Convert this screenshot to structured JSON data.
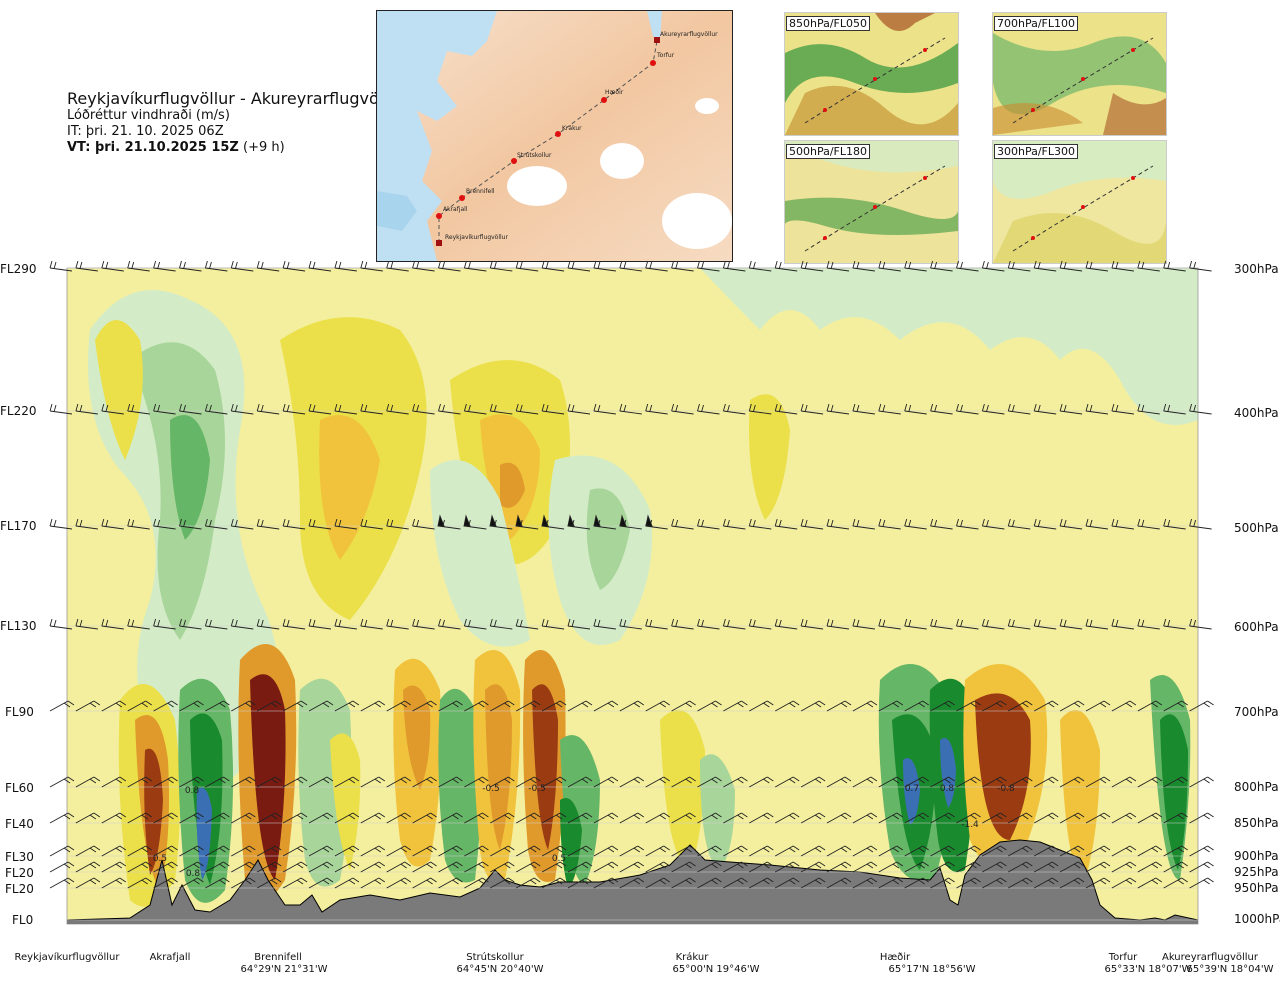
{
  "header": {
    "route": "Reykjavíkurflugvöllur - Akureyrarflugvöllur",
    "variable": "Lóðréttur vindhraði (m/s)",
    "issue_time": "IT: þri. 21. 10. 2025 06Z",
    "valid_time_bold": "VT: þri. 21.10.2025 15Z",
    "valid_offset": " (+9 h)"
  },
  "map": {
    "points": [
      {
        "name": "Akureyrarflugvöllur"
      },
      {
        "name": "Torfur"
      },
      {
        "name": "Hæðir"
      },
      {
        "name": "Krákur"
      },
      {
        "name": "Strútskollur"
      },
      {
        "name": "Brennifell"
      },
      {
        "name": "Akrafjall"
      },
      {
        "name": "Reykjavíkurflugvöllur"
      }
    ]
  },
  "panels": [
    {
      "label": "850hPa/FL050"
    },
    {
      "label": "700hPa/FL100"
    },
    {
      "label": "500hPa/FL180"
    },
    {
      "label": "300hPa/FL300"
    }
  ],
  "chart_data": {
    "type": "heatmap",
    "title": "Lóðréttur vindhraði (m/s)",
    "y_left_labels": [
      "FL290",
      "FL220",
      "FL170",
      "FL130",
      "FL90",
      "FL60",
      "FL40",
      "FL30",
      "FL20",
      "FL20",
      "FL0"
    ],
    "y_right_labels": [
      "300hPa",
      "400hPa",
      "500hPa",
      "600hPa",
      "700hPa",
      "800hPa",
      "850hPa",
      "900hPa",
      "925hPa",
      "950hPa",
      "1000hPa"
    ],
    "pressure_levels_hpa": [
      300,
      400,
      500,
      600,
      700,
      800,
      850,
      900,
      925,
      950,
      1000
    ],
    "route_points": [
      {
        "name": "Reykjavíkurflugvöllur",
        "coord": ""
      },
      {
        "name": "Akrafjall",
        "coord": ""
      },
      {
        "name": "Brennifell",
        "coord": "64°29'N 21°31'W"
      },
      {
        "name": "Strútskollur",
        "coord": "64°45'N 20°40'W"
      },
      {
        "name": "Krákur",
        "coord": "65°00'N 19°46'W"
      },
      {
        "name": "Hæðir",
        "coord": "65°17'N 18°56'W"
      },
      {
        "name": "Torfur",
        "coord": "65°33'N 18°07'W"
      },
      {
        "name": "Akureyrarflugvöllur",
        "coord": "65°39'N 18°04'W"
      }
    ],
    "annotations": [
      "0.8",
      "0.5",
      "0.8",
      "-0.5",
      "-0.5",
      "0.5",
      "0.7",
      "0.8",
      "-0.8",
      "-1.4"
    ],
    "colors": {
      "up_weak": "#f4ef9e",
      "up_1": "#ebe04a",
      "up_2": "#f1c33c",
      "up_3": "#e09a2c",
      "up_4": "#9b3b12",
      "up_5": "#7a1b12",
      "down_weak": "#d3ecc7",
      "down_1": "#a8d59a",
      "down_2": "#66b667",
      "down_3": "#1a8a2e",
      "down_4": "#3a6fb3",
      "terrain": "#7a7a7a"
    }
  }
}
